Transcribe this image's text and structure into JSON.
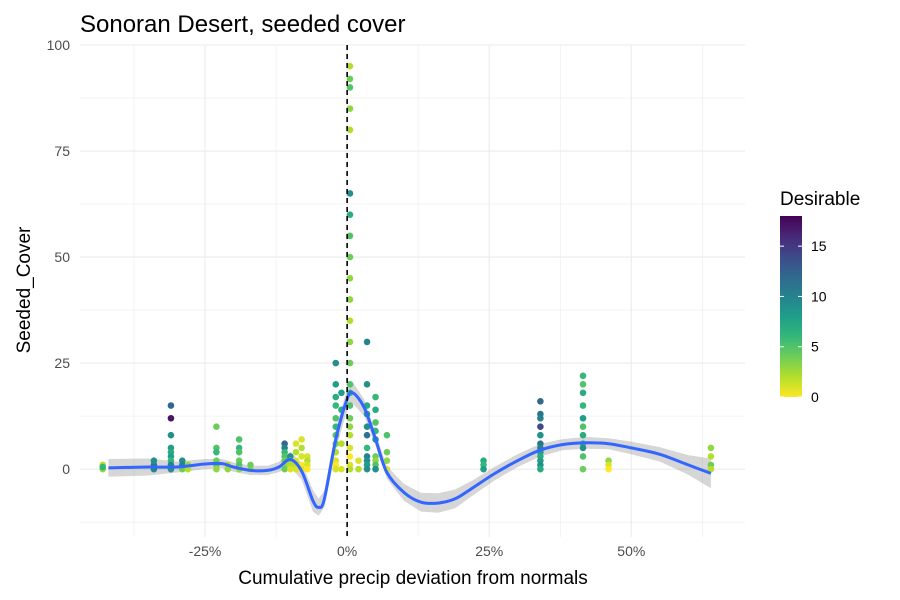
{
  "chart_data": {
    "type": "scatter",
    "title": "Sonoran Desert, seeded cover",
    "xlabel": "Cumulative precip deviation from normals",
    "ylabel": "Seeded_Cover",
    "xlim": [
      -0.47,
      0.7
    ],
    "ylim": [
      -16,
      100
    ],
    "x_ticks": [
      -0.25,
      0,
      0.25,
      0.5
    ],
    "x_tick_labels": [
      "-25%",
      "0%",
      "25%",
      "50%"
    ],
    "y_ticks": [
      0,
      25,
      50,
      75,
      100
    ],
    "y_tick_labels": [
      "0",
      "25",
      "50",
      "75",
      "100"
    ],
    "reference_line": {
      "x": 0,
      "style": "dashed",
      "color": "#000000"
    },
    "color_scale": {
      "name": "Desirable",
      "palette": "viridis-reversed",
      "min": 0,
      "max": 18,
      "ticks": [
        0,
        5,
        10,
        15
      ],
      "tick_labels": [
        "0",
        "5",
        "10",
        "15"
      ],
      "colors": [
        "#FDE725",
        "#B4DE2C",
        "#6DCD59",
        "#35B779",
        "#1F9E89",
        "#26828E",
        "#31688E",
        "#3E4A89",
        "#482878",
        "#440154"
      ]
    },
    "points": [
      {
        "x": -0.43,
        "y": 0,
        "c": 3
      },
      {
        "x": -0.43,
        "y": 1,
        "c": 2
      },
      {
        "x": -0.43,
        "y": 0.5,
        "c": 6
      },
      {
        "x": -0.34,
        "y": 0,
        "c": 10
      },
      {
        "x": -0.34,
        "y": 1,
        "c": 11
      },
      {
        "x": -0.34,
        "y": 2,
        "c": 9
      },
      {
        "x": -0.31,
        "y": 15,
        "c": 12
      },
      {
        "x": -0.31,
        "y": 12,
        "c": 17
      },
      {
        "x": -0.31,
        "y": 8,
        "c": 9
      },
      {
        "x": -0.31,
        "y": 5,
        "c": 8
      },
      {
        "x": -0.31,
        "y": 4,
        "c": 7
      },
      {
        "x": -0.31,
        "y": 3,
        "c": 8
      },
      {
        "x": -0.31,
        "y": 2,
        "c": 6
      },
      {
        "x": -0.31,
        "y": 1,
        "c": 10
      },
      {
        "x": -0.31,
        "y": 0,
        "c": 9
      },
      {
        "x": -0.29,
        "y": 2,
        "c": 9
      },
      {
        "x": -0.29,
        "y": 1,
        "c": 10
      },
      {
        "x": -0.29,
        "y": 0,
        "c": 4
      },
      {
        "x": -0.28,
        "y": 1,
        "c": 3
      },
      {
        "x": -0.28,
        "y": 0,
        "c": 2
      },
      {
        "x": -0.23,
        "y": 10,
        "c": 4
      },
      {
        "x": -0.23,
        "y": 5,
        "c": 5
      },
      {
        "x": -0.23,
        "y": 4,
        "c": 6
      },
      {
        "x": -0.23,
        "y": 2,
        "c": 4
      },
      {
        "x": -0.23,
        "y": 1,
        "c": 5
      },
      {
        "x": -0.23,
        "y": 0,
        "c": 3
      },
      {
        "x": -0.21,
        "y": 1,
        "c": 2
      },
      {
        "x": -0.21,
        "y": 0,
        "c": 3
      },
      {
        "x": -0.19,
        "y": 7,
        "c": 5
      },
      {
        "x": -0.19,
        "y": 5,
        "c": 6
      },
      {
        "x": -0.19,
        "y": 4,
        "c": 5
      },
      {
        "x": -0.19,
        "y": 2,
        "c": 4
      },
      {
        "x": -0.19,
        "y": 1,
        "c": 5
      },
      {
        "x": -0.19,
        "y": 0,
        "c": 3
      },
      {
        "x": -0.17,
        "y": 0,
        "c": 3
      },
      {
        "x": -0.17,
        "y": 1,
        "c": 4
      },
      {
        "x": -0.11,
        "y": 6,
        "c": 12
      },
      {
        "x": -0.11,
        "y": 5,
        "c": 10
      },
      {
        "x": -0.11,
        "y": 4,
        "c": 6
      },
      {
        "x": -0.11,
        "y": 3,
        "c": 5
      },
      {
        "x": -0.11,
        "y": 2,
        "c": 4
      },
      {
        "x": -0.11,
        "y": 1,
        "c": 3
      },
      {
        "x": -0.11,
        "y": 0,
        "c": 4
      },
      {
        "x": -0.1,
        "y": 3,
        "c": 9
      },
      {
        "x": -0.1,
        "y": 2,
        "c": 4
      },
      {
        "x": -0.1,
        "y": 1,
        "c": 2
      },
      {
        "x": -0.1,
        "y": 0,
        "c": 1
      },
      {
        "x": -0.09,
        "y": 6,
        "c": 1
      },
      {
        "x": -0.09,
        "y": 4,
        "c": 2
      },
      {
        "x": -0.09,
        "y": 2,
        "c": 1
      },
      {
        "x": -0.09,
        "y": 1,
        "c": 2
      },
      {
        "x": -0.09,
        "y": 0,
        "c": 1
      },
      {
        "x": -0.08,
        "y": 7,
        "c": 1
      },
      {
        "x": -0.08,
        "y": 5,
        "c": 2
      },
      {
        "x": -0.08,
        "y": 3,
        "c": 1
      },
      {
        "x": -0.08,
        "y": 1,
        "c": 0
      },
      {
        "x": -0.08,
        "y": 0,
        "c": 1
      },
      {
        "x": -0.07,
        "y": 3,
        "c": 1
      },
      {
        "x": -0.07,
        "y": 2,
        "c": 2
      },
      {
        "x": -0.07,
        "y": 1,
        "c": 1
      },
      {
        "x": -0.07,
        "y": 0,
        "c": 0
      },
      {
        "x": -0.02,
        "y": 25,
        "c": 9
      },
      {
        "x": -0.02,
        "y": 20,
        "c": 8
      },
      {
        "x": -0.02,
        "y": 17,
        "c": 7
      },
      {
        "x": -0.02,
        "y": 15,
        "c": 6
      },
      {
        "x": -0.02,
        "y": 12,
        "c": 5
      },
      {
        "x": -0.02,
        "y": 10,
        "c": 6
      },
      {
        "x": -0.02,
        "y": 8,
        "c": 5
      },
      {
        "x": -0.02,
        "y": 6,
        "c": 4
      },
      {
        "x": -0.02,
        "y": 4,
        "c": 2
      },
      {
        "x": -0.02,
        "y": 2,
        "c": 1
      },
      {
        "x": -0.02,
        "y": 1,
        "c": 0
      },
      {
        "x": -0.02,
        "y": 0,
        "c": 1
      },
      {
        "x": -0.01,
        "y": 18,
        "c": 8
      },
      {
        "x": -0.01,
        "y": 14,
        "c": 7
      },
      {
        "x": -0.01,
        "y": 6,
        "c": 2
      },
      {
        "x": -0.01,
        "y": 0,
        "c": 1
      },
      {
        "x": 0.005,
        "y": 95,
        "c": 2
      },
      {
        "x": 0.005,
        "y": 92,
        "c": 4
      },
      {
        "x": 0.005,
        "y": 90,
        "c": 5
      },
      {
        "x": 0.005,
        "y": 85,
        "c": 3
      },
      {
        "x": 0.005,
        "y": 80,
        "c": 2
      },
      {
        "x": 0.005,
        "y": 65,
        "c": 9
      },
      {
        "x": 0.005,
        "y": 60,
        "c": 7
      },
      {
        "x": 0.005,
        "y": 55,
        "c": 5
      },
      {
        "x": 0.005,
        "y": 50,
        "c": 4
      },
      {
        "x": 0.005,
        "y": 45,
        "c": 3
      },
      {
        "x": 0.005,
        "y": 40,
        "c": 3
      },
      {
        "x": 0.005,
        "y": 35,
        "c": 2
      },
      {
        "x": 0.005,
        "y": 30,
        "c": 3
      },
      {
        "x": 0.005,
        "y": 25,
        "c": 4
      },
      {
        "x": 0.005,
        "y": 20,
        "c": 5
      },
      {
        "x": 0.005,
        "y": 18,
        "c": 6
      },
      {
        "x": 0.005,
        "y": 15,
        "c": 5
      },
      {
        "x": 0.005,
        "y": 12,
        "c": 4
      },
      {
        "x": 0.005,
        "y": 10,
        "c": 3
      },
      {
        "x": 0.005,
        "y": 8,
        "c": 2
      },
      {
        "x": 0.005,
        "y": 5,
        "c": 1
      },
      {
        "x": 0.005,
        "y": 3,
        "c": 0
      },
      {
        "x": 0.005,
        "y": 1,
        "c": 1
      },
      {
        "x": 0.005,
        "y": 0,
        "c": 2
      },
      {
        "x": 0.02,
        "y": 2,
        "c": 1
      },
      {
        "x": 0.02,
        "y": 0,
        "c": 2
      },
      {
        "x": 0.035,
        "y": 30,
        "c": 10
      },
      {
        "x": 0.035,
        "y": 20,
        "c": 9
      },
      {
        "x": 0.035,
        "y": 15,
        "c": 7
      },
      {
        "x": 0.035,
        "y": 13,
        "c": 8
      },
      {
        "x": 0.035,
        "y": 10,
        "c": 9
      },
      {
        "x": 0.035,
        "y": 8,
        "c": 11
      },
      {
        "x": 0.035,
        "y": 5,
        "c": 6
      },
      {
        "x": 0.035,
        "y": 3,
        "c": 10
      },
      {
        "x": 0.035,
        "y": 2,
        "c": 9
      },
      {
        "x": 0.035,
        "y": 1,
        "c": 8
      },
      {
        "x": 0.035,
        "y": 0,
        "c": 9
      },
      {
        "x": 0.05,
        "y": 17,
        "c": 6
      },
      {
        "x": 0.05,
        "y": 14,
        "c": 7
      },
      {
        "x": 0.05,
        "y": 11,
        "c": 5
      },
      {
        "x": 0.05,
        "y": 9,
        "c": 6
      },
      {
        "x": 0.05,
        "y": 7,
        "c": 8
      },
      {
        "x": 0.05,
        "y": 3,
        "c": 4
      },
      {
        "x": 0.05,
        "y": 2,
        "c": 3
      },
      {
        "x": 0.05,
        "y": 1,
        "c": 5
      },
      {
        "x": 0.05,
        "y": 0,
        "c": 9
      },
      {
        "x": 0.07,
        "y": 8,
        "c": 5
      },
      {
        "x": 0.07,
        "y": 4,
        "c": 4
      },
      {
        "x": 0.07,
        "y": 2,
        "c": 3
      },
      {
        "x": 0.07,
        "y": 0,
        "c": 1
      },
      {
        "x": 0.24,
        "y": 2,
        "c": 7
      },
      {
        "x": 0.24,
        "y": 1,
        "c": 6
      },
      {
        "x": 0.24,
        "y": 0,
        "c": 8
      },
      {
        "x": 0.34,
        "y": 16,
        "c": 12
      },
      {
        "x": 0.34,
        "y": 13,
        "c": 11
      },
      {
        "x": 0.34,
        "y": 12,
        "c": 10
      },
      {
        "x": 0.34,
        "y": 10,
        "c": 14
      },
      {
        "x": 0.34,
        "y": 8,
        "c": 9
      },
      {
        "x": 0.34,
        "y": 6,
        "c": 11
      },
      {
        "x": 0.34,
        "y": 5,
        "c": 10
      },
      {
        "x": 0.34,
        "y": 4,
        "c": 8
      },
      {
        "x": 0.34,
        "y": 3,
        "c": 7
      },
      {
        "x": 0.34,
        "y": 2,
        "c": 8
      },
      {
        "x": 0.34,
        "y": 1,
        "c": 9
      },
      {
        "x": 0.34,
        "y": 0,
        "c": 7
      },
      {
        "x": 0.415,
        "y": 22,
        "c": 6
      },
      {
        "x": 0.415,
        "y": 20,
        "c": 5
      },
      {
        "x": 0.415,
        "y": 18,
        "c": 7
      },
      {
        "x": 0.415,
        "y": 15,
        "c": 6
      },
      {
        "x": 0.415,
        "y": 12,
        "c": 8
      },
      {
        "x": 0.415,
        "y": 10,
        "c": 5
      },
      {
        "x": 0.415,
        "y": 8,
        "c": 7
      },
      {
        "x": 0.415,
        "y": 6,
        "c": 6
      },
      {
        "x": 0.415,
        "y": 5,
        "c": 9
      },
      {
        "x": 0.415,
        "y": 3,
        "c": 5
      },
      {
        "x": 0.415,
        "y": 0,
        "c": 4
      },
      {
        "x": 0.46,
        "y": 2,
        "c": 3
      },
      {
        "x": 0.46,
        "y": 1,
        "c": 1
      },
      {
        "x": 0.46,
        "y": 0,
        "c": 0
      },
      {
        "x": 0.64,
        "y": 5,
        "c": 3
      },
      {
        "x": 0.64,
        "y": 3,
        "c": 2
      },
      {
        "x": 0.64,
        "y": 1,
        "c": 4
      },
      {
        "x": 0.64,
        "y": 0,
        "c": 2
      }
    ],
    "smooth_line": {
      "color": "#3366FF",
      "x": [
        -0.42,
        -0.35,
        -0.3,
        -0.25,
        -0.22,
        -0.2,
        -0.17,
        -0.14,
        -0.12,
        -0.1,
        -0.08,
        -0.06,
        -0.05,
        -0.04,
        -0.02,
        0.0,
        0.01,
        0.03,
        0.05,
        0.07,
        0.1,
        0.13,
        0.16,
        0.19,
        0.22,
        0.26,
        0.3,
        0.34,
        0.38,
        0.42,
        0.46,
        0.5,
        0.55,
        0.6,
        0.64
      ],
      "y": [
        0.3,
        0.5,
        0.5,
        1.2,
        1.3,
        0.5,
        -0.3,
        -0.3,
        0.5,
        2.3,
        -0.5,
        -7.5,
        -9.0,
        -7.0,
        7.0,
        16.5,
        18.0,
        14.5,
        7.0,
        -0.8,
        -5.5,
        -7.8,
        -8.0,
        -7.0,
        -4.5,
        -1.0,
        2.0,
        4.5,
        5.8,
        6.2,
        6.0,
        5.0,
        3.5,
        1.0,
        -1.0
      ],
      "se_lower": [
        -1.8,
        -1.5,
        -0.8,
        0.0,
        0.2,
        -0.6,
        -1.4,
        -1.4,
        -0.7,
        0.5,
        -2.5,
        -10.0,
        -11.0,
        -9.0,
        4.5,
        14.0,
        15.5,
        12.5,
        5.5,
        -2.3,
        -7.5,
        -10.0,
        -10.3,
        -9.2,
        -6.3,
        -2.6,
        0.5,
        3.0,
        4.5,
        4.8,
        4.7,
        3.5,
        1.8,
        -1.3,
        -4.5
      ],
      "se_upper": [
        2.4,
        2.5,
        1.8,
        2.4,
        2.4,
        1.6,
        0.8,
        0.8,
        1.7,
        4.1,
        1.5,
        -5.0,
        -7.0,
        -5.0,
        9.5,
        19.0,
        20.5,
        16.5,
        8.5,
        0.7,
        -3.5,
        -5.6,
        -5.7,
        -4.8,
        -2.7,
        0.6,
        3.5,
        6.0,
        7.1,
        7.6,
        7.3,
        6.5,
        5.2,
        3.3,
        2.5
      ]
    }
  }
}
